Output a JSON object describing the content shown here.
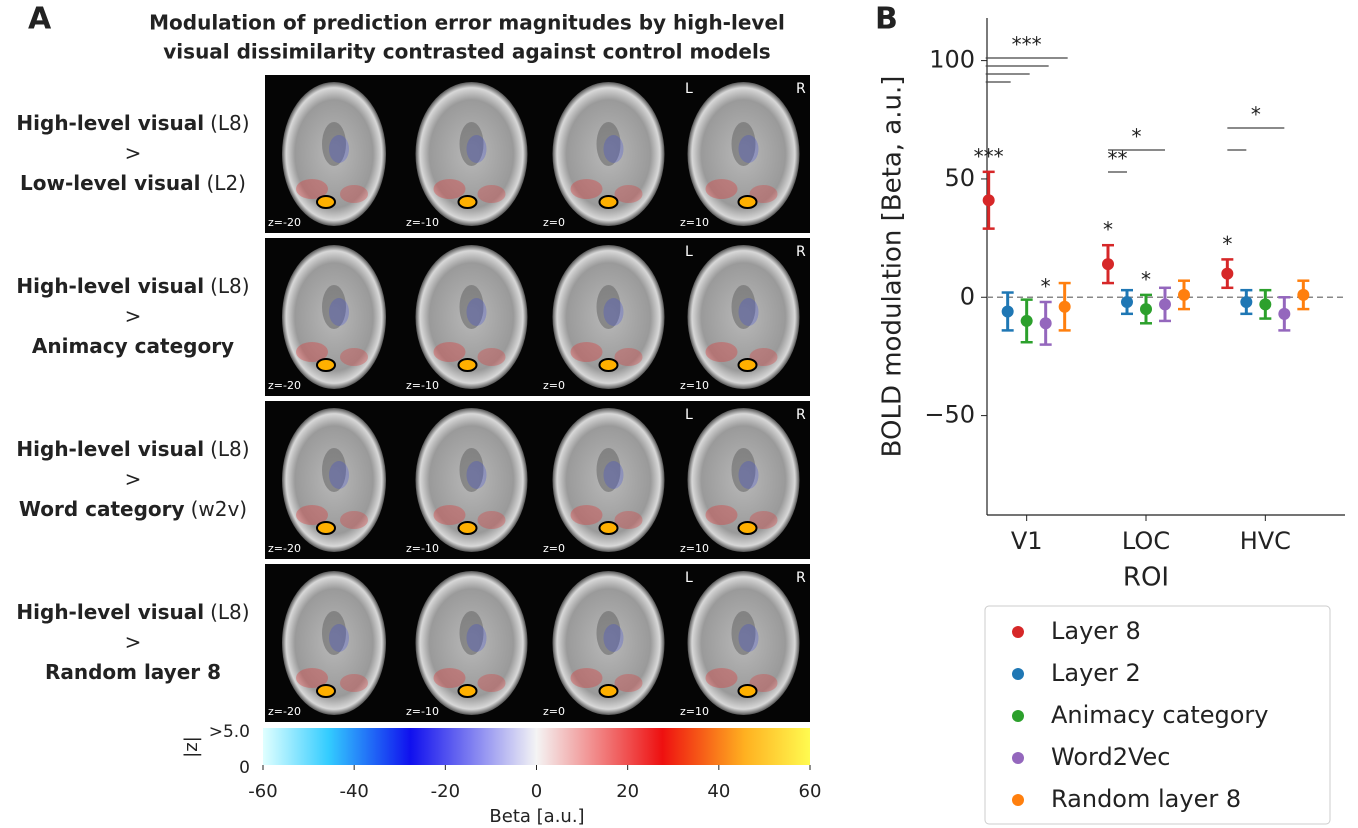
{
  "panel_a": {
    "letter": "A",
    "title_lines": [
      "Modulation of prediction error magnitudes by high-level",
      "visual dissimilarity contrasted against control models"
    ],
    "rows": [
      {
        "top_bold": "High-level visual",
        "top_note": "(L8)",
        "separator": ">",
        "bottom_bold": "Low-level visual",
        "bottom_note": "(L2)"
      },
      {
        "top_bold": "High-level visual",
        "top_note": "(L8)",
        "separator": ">",
        "bottom_bold": "Animacy category"
      },
      {
        "top_bold": "High-level visual",
        "top_note": "(L8)",
        "separator": ">",
        "bottom_bold": "Word category",
        "bottom_note": "(w2v)"
      },
      {
        "top_bold": "High-level visual",
        "top_note": "(L8)",
        "separator": ">",
        "bottom_bold": "Random layer 8"
      }
    ],
    "slice_labels": [
      "z=-20",
      "z=-10",
      "z=0",
      "z=10"
    ],
    "hemisphere_labels": [
      "L",
      "R"
    ],
    "colorbar": {
      "xlabel": "Beta [a.u.]",
      "xlim": [
        -60,
        60
      ],
      "xticks": [
        -60,
        -40,
        -20,
        0,
        20,
        40,
        60
      ],
      "zlabel": "|z|",
      "zticks": [
        {
          "value": 5,
          "label": ">5.0"
        },
        0
      ]
    }
  },
  "chart_data": {
    "type": "errorbar",
    "letter": "B",
    "xlabel": "ROI",
    "ylabel": "BOLD modulation [Beta, a.u.]",
    "categories": [
      "V1",
      "LOC",
      "HVC"
    ],
    "ylim": [
      -92,
      118
    ],
    "yticks": [
      {
        "value": -50,
        "label": "−50"
      },
      0,
      50,
      100
    ],
    "zero_line": true,
    "legend": "below",
    "series": [
      {
        "name": "Layer 8",
        "color": "#d62728",
        "values": [
          41,
          14,
          10
        ],
        "errors": [
          12,
          8,
          6
        ]
      },
      {
        "name": "Layer 2",
        "color": "#1f77b4",
        "values": [
          -6,
          -2,
          -2
        ],
        "errors": [
          8,
          5,
          5
        ]
      },
      {
        "name": "Animacy category",
        "color": "#2ca02c",
        "values": [
          -10,
          -5,
          -3
        ],
        "errors": [
          9,
          6,
          6
        ]
      },
      {
        "name": "Word2Vec",
        "color": "#9467bd",
        "values": [
          -11,
          -3,
          -7
        ],
        "errors": [
          9,
          7,
          7
        ]
      },
      {
        "name": "Random layer 8",
        "color": "#ff7f0e",
        "values": [
          -4,
          1,
          1
        ],
        "errors": [
          10,
          6,
          6
        ]
      }
    ],
    "stars": [
      {
        "category": 0,
        "series": 0,
        "label": "***"
      },
      {
        "category": 0,
        "series": 3,
        "label": "*"
      },
      {
        "category": 1,
        "series": 0,
        "label": "*"
      },
      {
        "category": 1,
        "series": 2,
        "label": "*"
      },
      {
        "category": 2,
        "series": 0,
        "label": "*"
      }
    ],
    "brackets": [
      {
        "category": 0,
        "from": 0,
        "to": 1
      },
      {
        "category": 0,
        "from": 0,
        "to": 2
      },
      {
        "category": 0,
        "from": 0,
        "to": 3
      },
      {
        "category": 0,
        "from": 0,
        "to": 4,
        "label": "***"
      },
      {
        "category": 1,
        "from": 0,
        "to": 1,
        "label": "**"
      },
      {
        "category": 1,
        "from": 0,
        "to": 3,
        "label": "*"
      },
      {
        "category": 2,
        "from": 0,
        "to": 1
      },
      {
        "category": 2,
        "from": 0,
        "to": 3,
        "label": "*"
      }
    ]
  }
}
